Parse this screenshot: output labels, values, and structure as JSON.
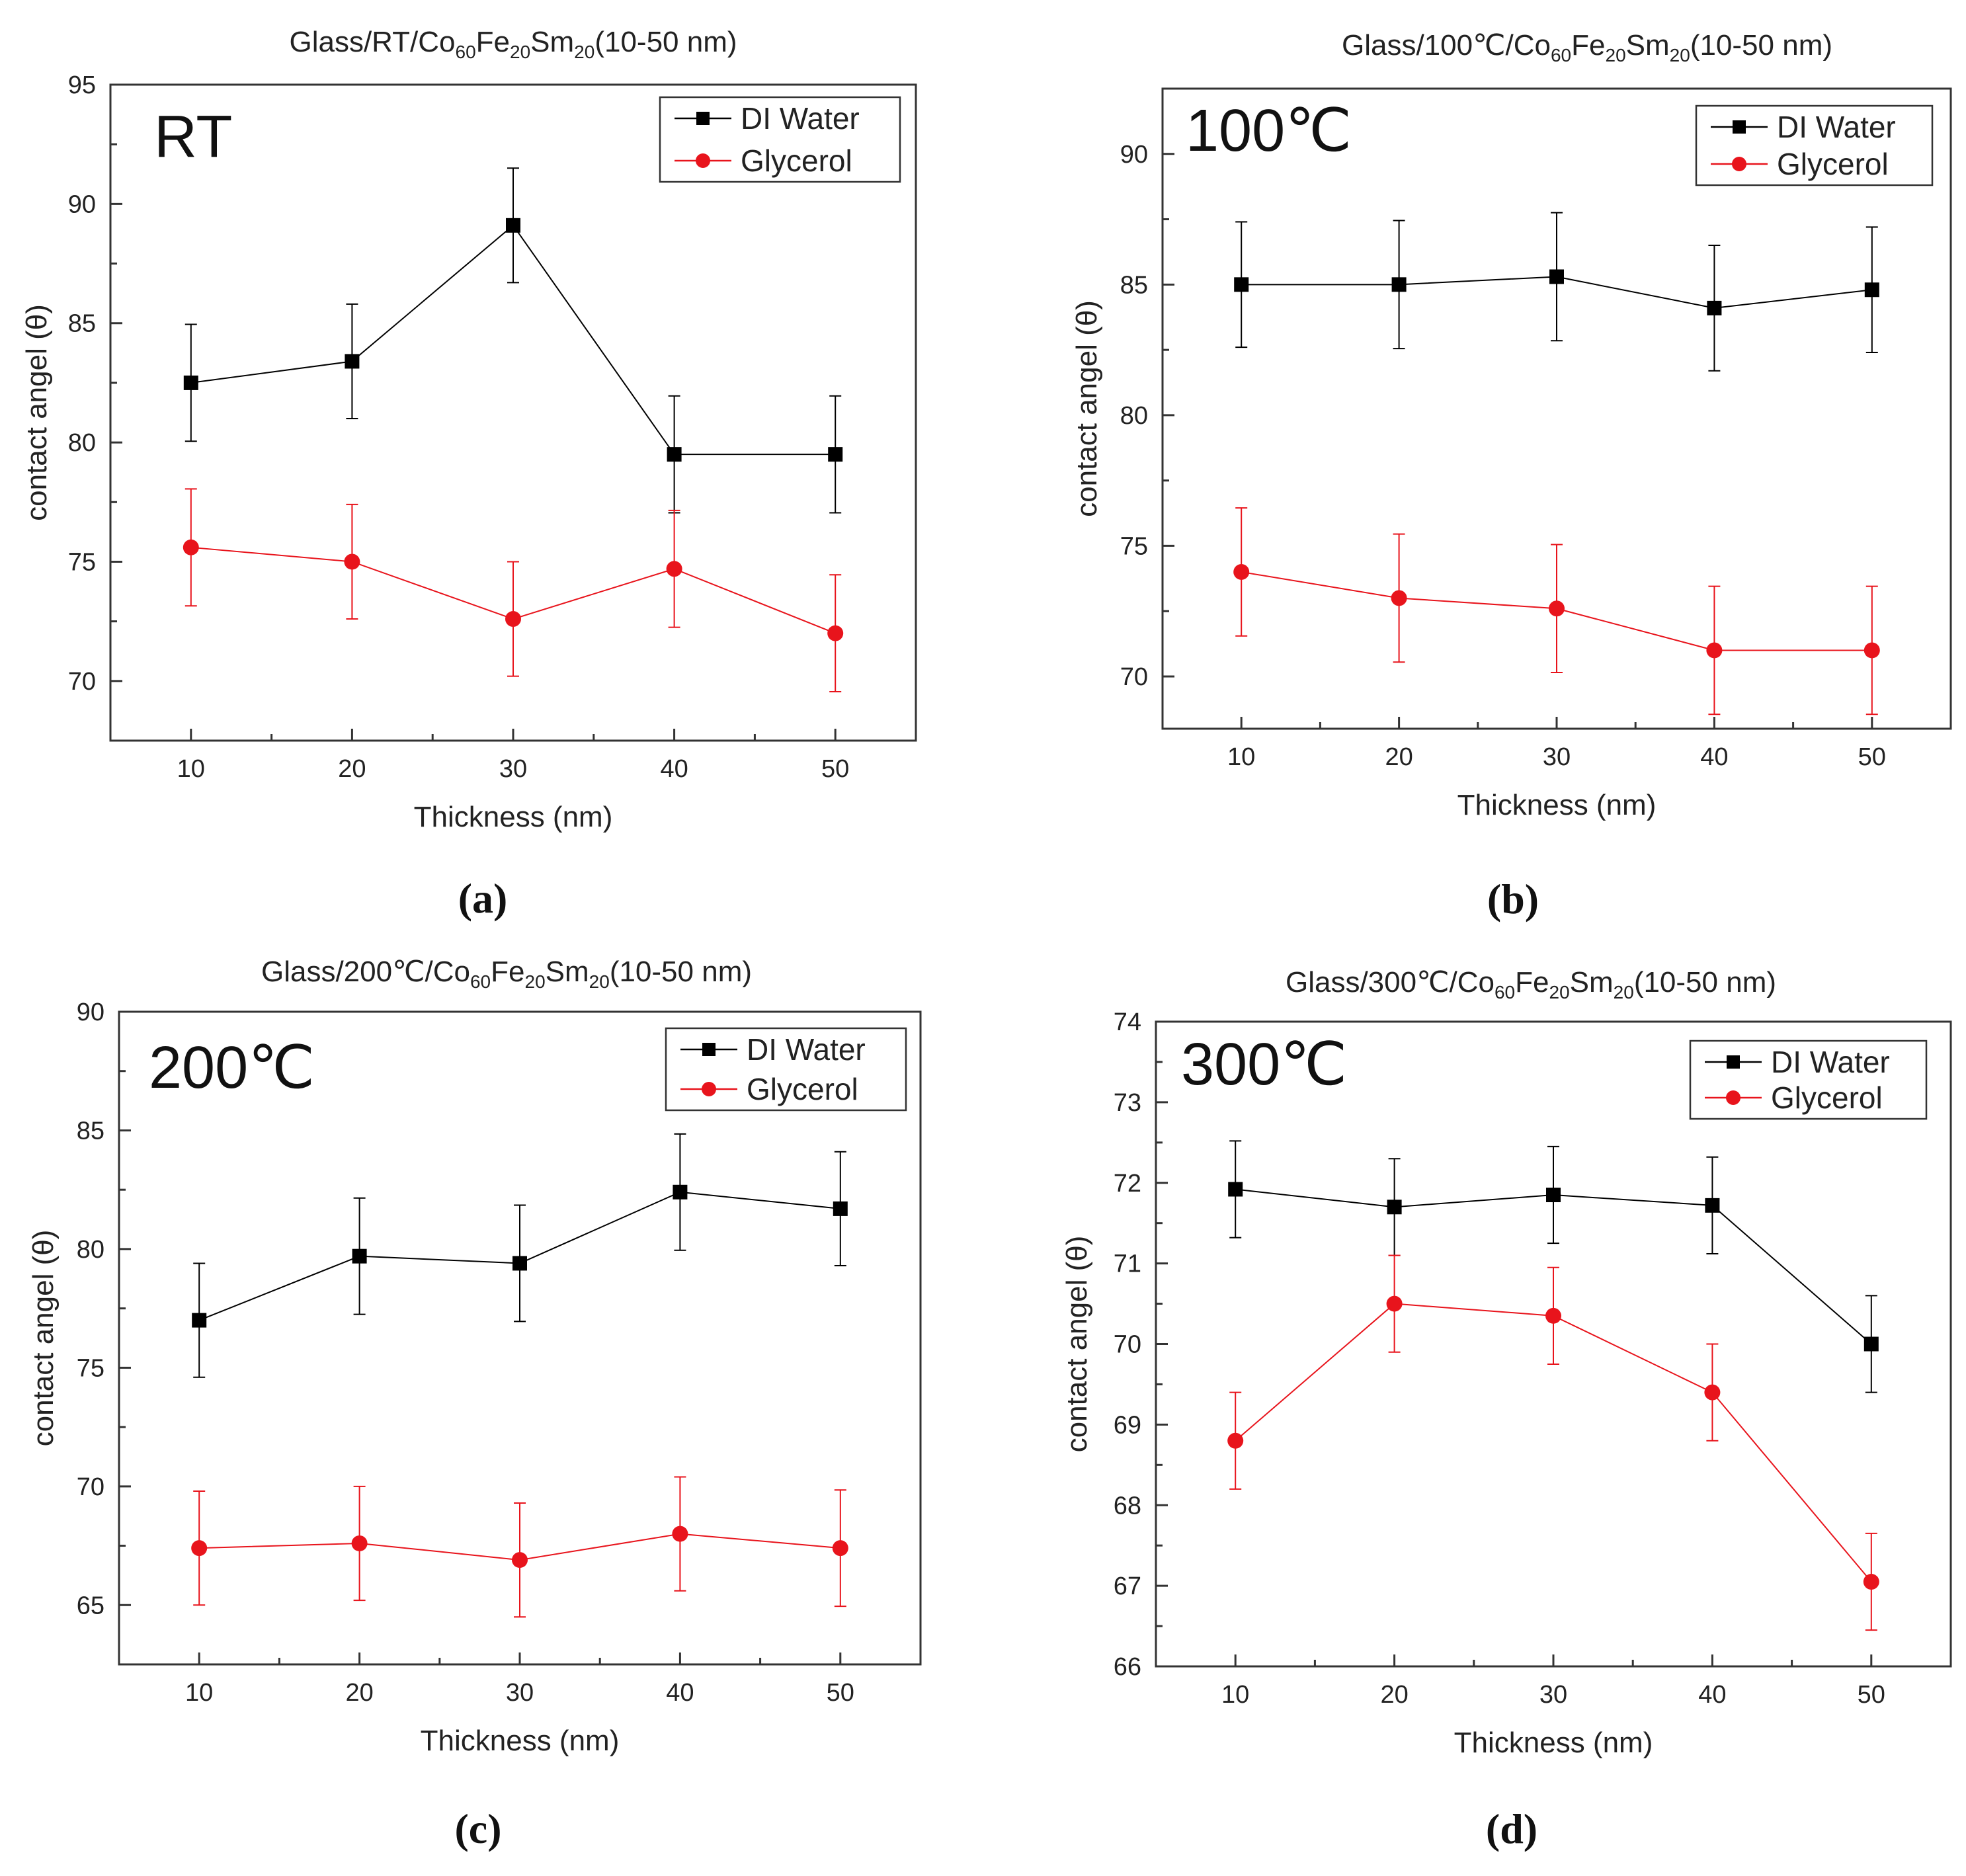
{
  "chart_data": [
    {
      "type": "line",
      "panel_label": "(a)",
      "title": "Glass/RT/Co60Fe20Sm20(10-50 nm)",
      "title_parts": {
        "prefix": "Glass/RT/",
        "el1": "Co",
        "sub1": "60",
        "el2": "Fe",
        "sub2": "20",
        "el3": "Sm",
        "sub3": "20",
        "suffix": "(10-50 nm)"
      },
      "annotation": "RT",
      "xlabel": "Thickness (nm)",
      "ylabel": "contact angel (θ)",
      "x": [
        10,
        20,
        30,
        40,
        50
      ],
      "xticks": [
        10,
        20,
        30,
        40,
        50
      ],
      "xlim": [
        5,
        55
      ],
      "ylim": [
        67.5,
        95
      ],
      "yticks": [
        70,
        75,
        80,
        85,
        90,
        95
      ],
      "legend": "top-right",
      "series": [
        {
          "name": "DI Water",
          "color": "#000000",
          "marker": "square",
          "values": [
            82.5,
            83.4,
            89.1,
            79.5,
            79.5
          ],
          "errors": [
            2.45,
            2.4,
            2.4,
            2.45,
            2.45
          ]
        },
        {
          "name": "Glycerol",
          "color": "#e8141c",
          "marker": "circle",
          "values": [
            75.6,
            75.0,
            72.6,
            74.7,
            72.0
          ],
          "errors": [
            2.45,
            2.4,
            2.4,
            2.45,
            2.45
          ]
        }
      ]
    },
    {
      "type": "line",
      "panel_label": "(b)",
      "title": "Glass/100℃/Co60Fe20Sm20(10-50 nm)",
      "title_parts": {
        "prefix": "Glass/100℃/",
        "el1": "Co",
        "sub1": "60",
        "el2": "Fe",
        "sub2": "20",
        "el3": "Sm",
        "sub3": "20",
        "suffix": "(10-50 nm)"
      },
      "annotation": "100℃",
      "xlabel": "Thickness (nm)",
      "ylabel": "contact angel (θ)",
      "x": [
        10,
        20,
        30,
        40,
        50
      ],
      "xticks": [
        10,
        20,
        30,
        40,
        50
      ],
      "xlim": [
        5,
        55
      ],
      "ylim": [
        68,
        92.5
      ],
      "yticks": [
        70,
        75,
        80,
        85,
        90
      ],
      "legend": "top-right",
      "series": [
        {
          "name": "DI Water",
          "color": "#000000",
          "marker": "square",
          "values": [
            85.0,
            85.0,
            85.3,
            84.1,
            84.8
          ],
          "errors": [
            2.4,
            2.45,
            2.45,
            2.4,
            2.4
          ]
        },
        {
          "name": "Glycerol",
          "color": "#e8141c",
          "marker": "circle",
          "values": [
            74.0,
            73.0,
            72.6,
            71.0,
            71.0
          ],
          "errors": [
            2.45,
            2.45,
            2.45,
            2.45,
            2.45
          ]
        }
      ]
    },
    {
      "type": "line",
      "panel_label": "(c)",
      "title": "Glass/200℃/Co60Fe20Sm20(10-50 nm)",
      "title_parts": {
        "prefix": "Glass/200℃/",
        "el1": "Co",
        "sub1": "60",
        "el2": "Fe",
        "sub2": "20",
        "el3": "Sm",
        "sub3": "20",
        "suffix": "(10-50 nm)"
      },
      "annotation": "200℃",
      "xlabel": "Thickness (nm)",
      "ylabel": "contact angel (θ)",
      "x": [
        10,
        20,
        30,
        40,
        50
      ],
      "xticks": [
        10,
        20,
        30,
        40,
        50
      ],
      "xlim": [
        5,
        55
      ],
      "ylim": [
        62.5,
        90
      ],
      "yticks": [
        65,
        70,
        75,
        80,
        85,
        90
      ],
      "legend": "top-right",
      "series": [
        {
          "name": "DI Water",
          "color": "#000000",
          "marker": "square",
          "values": [
            77.0,
            79.7,
            79.4,
            82.4,
            81.7
          ],
          "errors": [
            2.4,
            2.45,
            2.45,
            2.45,
            2.4
          ]
        },
        {
          "name": "Glycerol",
          "color": "#e8141c",
          "marker": "circle",
          "values": [
            67.4,
            67.6,
            66.9,
            68.0,
            67.4
          ],
          "errors": [
            2.4,
            2.4,
            2.4,
            2.4,
            2.45
          ]
        }
      ]
    },
    {
      "type": "line",
      "panel_label": "(d)",
      "title": "Glass/300℃/Co60Fe20Sm20(10-50 nm)",
      "title_parts": {
        "prefix": "Glass/300℃/",
        "el1": "Co",
        "sub1": "60",
        "el2": "Fe",
        "sub2": "20",
        "el3": "Sm",
        "sub3": "20",
        "suffix": "(10-50 nm)"
      },
      "annotation": "300℃",
      "xlabel": "Thickness (nm)",
      "ylabel": "contact angel (θ)",
      "x": [
        10,
        20,
        30,
        40,
        50
      ],
      "xticks": [
        10,
        20,
        30,
        40,
        50
      ],
      "xlim": [
        5,
        55
      ],
      "ylim": [
        66,
        74
      ],
      "yticks": [
        66,
        67,
        68,
        69,
        70,
        71,
        72,
        73,
        74
      ],
      "legend": "top-right",
      "series": [
        {
          "name": "DI Water",
          "color": "#000000",
          "marker": "square",
          "values": [
            71.92,
            71.7,
            71.85,
            71.72,
            70.0
          ],
          "errors": [
            0.6,
            0.6,
            0.6,
            0.6,
            0.6
          ]
        },
        {
          "name": "Glycerol",
          "color": "#e8141c",
          "marker": "circle",
          "values": [
            68.8,
            70.5,
            70.35,
            69.4,
            67.05
          ],
          "errors": [
            0.6,
            0.6,
            0.6,
            0.6,
            0.6
          ]
        }
      ]
    }
  ]
}
